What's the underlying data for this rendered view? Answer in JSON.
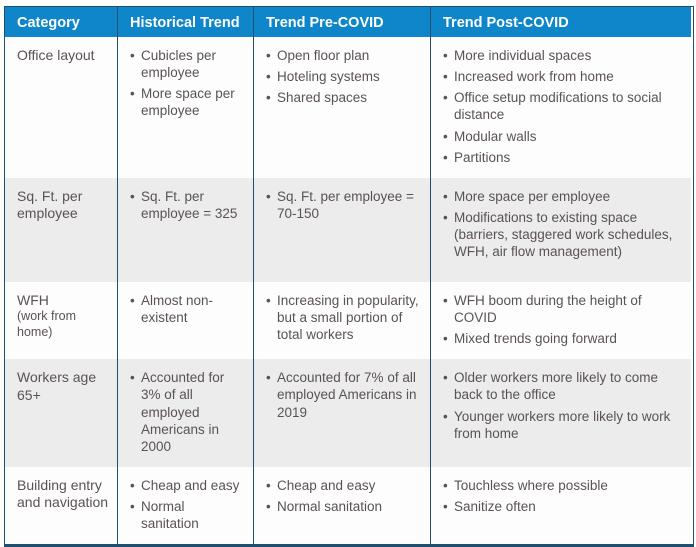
{
  "colors": {
    "header_bg": "#0f86c9",
    "header_text": "#ffffff",
    "border": "#1e4f6e",
    "body_text": "#5a5254",
    "alt_row_bg": "#ececec",
    "row_bg": "#fdfdfd"
  },
  "table": {
    "columns": [
      "Category",
      "Historical Trend",
      "Trend Pre-COVID",
      "Trend Post-COVID"
    ],
    "rows": [
      {
        "category": "Office layout",
        "category_sub": "",
        "historical": [
          "Cubicles per employee",
          "More space per employee"
        ],
        "pre_covid": [
          "Open floor plan",
          "Hoteling systems",
          "Shared spaces"
        ],
        "post_covid": [
          "More individual spaces",
          "Increased work from home",
          "Office setup modifications to social distance",
          "Modular walls",
          "Partitions"
        ]
      },
      {
        "category": "Sq. Ft. per employee",
        "category_sub": "",
        "historical": [
          "Sq. Ft. per employee = 325"
        ],
        "pre_covid": [
          "Sq. Ft. per employee = 70-150"
        ],
        "post_covid": [
          "More space per employee",
          "Modifications to existing space (barriers, staggered work schedules, WFH, air flow management)"
        ]
      },
      {
        "category": "WFH",
        "category_sub": "(work from home)",
        "historical": [
          "Almost non-existent"
        ],
        "pre_covid": [
          "Increasing in popularity, but a small portion of total workers"
        ],
        "post_covid": [
          "WFH boom during the height of COVID",
          "Mixed trends going forward"
        ]
      },
      {
        "category": "Workers age 65+",
        "category_sub": "",
        "historical": [
          "Accounted for 3% of all employed Americans in 2000"
        ],
        "pre_covid": [
          "Accounted for 7% of all employed Americans in 2019"
        ],
        "post_covid": [
          "Older workers more likely to come back to the office",
          "Younger workers more likely to work from home"
        ]
      },
      {
        "category": "Building entry and navigation",
        "category_sub": "",
        "historical": [
          "Cheap and easy",
          "Normal sanitation"
        ],
        "pre_covid": [
          "Cheap and easy",
          "Normal sanitation"
        ],
        "post_covid": [
          "Touchless where possible",
          "Sanitize often"
        ]
      }
    ]
  }
}
